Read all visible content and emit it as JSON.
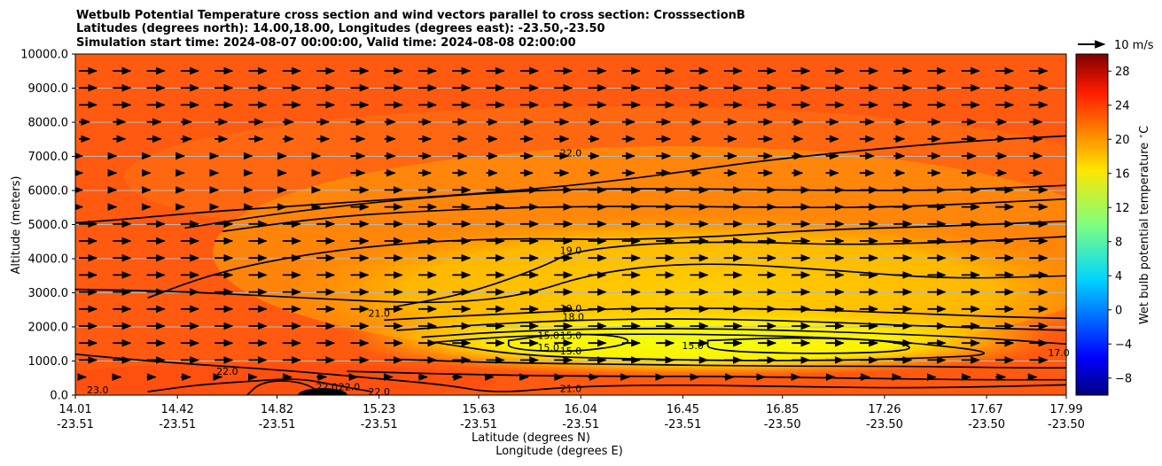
{
  "chart_data": {
    "type": "contour",
    "title_lines": [
      "Wetbulb Potential Temperature cross section and wind vectors parallel to cross section: CrosssectionB",
      "Latitudes (degrees north): 14.00,18.00, Longitudes (degrees east): -23.50,-23.50",
      "Simulation start time: 2024-08-07 00:00:00, Valid time: 2024-08-08 02:00:00"
    ],
    "xlabel_lat": "Latitude (degrees N)",
    "xlabel_lon": "Longitude (degrees E)",
    "ylabel": "Altitude (meters)",
    "ylim": [
      0,
      10000
    ],
    "y_ticks": [
      "0.0",
      "1000.0",
      "2000.0",
      "3000.0",
      "4000.0",
      "5000.0",
      "6000.0",
      "7000.0",
      "8000.0",
      "9000.0",
      "10000.0"
    ],
    "y_tick_values": [
      0,
      1000,
      2000,
      3000,
      4000,
      5000,
      6000,
      7000,
      8000,
      9000,
      10000
    ],
    "xlim": [
      14.01,
      17.99
    ],
    "x_ticks": [
      {
        "lat": "14.01",
        "lon": "-23.51"
      },
      {
        "lat": "14.42",
        "lon": "-23.51"
      },
      {
        "lat": "14.82",
        "lon": "-23.51"
      },
      {
        "lat": "15.23",
        "lon": "-23.51"
      },
      {
        "lat": "15.63",
        "lon": "-23.51"
      },
      {
        "lat": "16.04",
        "lon": "-23.51"
      },
      {
        "lat": "16.45",
        "lon": "-23.51"
      },
      {
        "lat": "16.85",
        "lon": "-23.50"
      },
      {
        "lat": "17.26",
        "lon": "-23.50"
      },
      {
        "lat": "17.67",
        "lon": "-23.50"
      },
      {
        "lat": "17.99",
        "lon": "-23.50"
      }
    ],
    "colorbar": {
      "label": "Wet bulb potential temperature $^\\circ$C",
      "ticks": [
        "−8",
        "−4",
        "0",
        "4",
        "8",
        "12",
        "16",
        "20",
        "24",
        "28"
      ],
      "tick_values": [
        -8,
        -4,
        0,
        4,
        8,
        12,
        16,
        20,
        24,
        28
      ],
      "range": [
        -10,
        30
      ]
    },
    "quiver_key": "10 m/s",
    "contour_labels": [
      {
        "text": "22.0",
        "lat": 16.0,
        "alt": 7100
      },
      {
        "text": "19.0",
        "lat": 16.0,
        "alt": 4250
      },
      {
        "text": "19.0",
        "lat": 16.0,
        "alt": 2550
      },
      {
        "text": "18.0",
        "lat": 16.01,
        "alt": 2300
      },
      {
        "text": "21.0",
        "lat": 15.23,
        "alt": 2400
      },
      {
        "text": "15.0",
        "lat": 15.91,
        "alt": 1750
      },
      {
        "text": "15.0",
        "lat": 16.0,
        "alt": 1750
      },
      {
        "text": "15.0",
        "lat": 15.91,
        "alt": 1400
      },
      {
        "text": "15.0",
        "lat": 16.0,
        "alt": 1300
      },
      {
        "text": "15.0",
        "lat": 16.49,
        "alt": 1450
      },
      {
        "text": "17.0",
        "lat": 17.96,
        "alt": 1250
      },
      {
        "text": "22.0",
        "lat": 14.62,
        "alt": 700
      },
      {
        "text": "23.0",
        "lat": 14.1,
        "alt": 150
      },
      {
        "text": "22.0",
        "lat": 15.02,
        "alt": 250
      },
      {
        "text": "22.0",
        "lat": 15.11,
        "alt": 250
      },
      {
        "text": "22.0",
        "lat": 15.23,
        "alt": 100
      },
      {
        "text": "21.0",
        "lat": 16.0,
        "alt": 200
      }
    ],
    "contours": [
      {
        "level": 22,
        "points": [
          [
            14.01,
            5050
          ],
          [
            14.2,
            5150
          ],
          [
            14.5,
            5350
          ],
          [
            14.8,
            5500
          ],
          [
            15.1,
            5650
          ],
          [
            15.4,
            5800
          ],
          [
            15.8,
            6000
          ],
          [
            16.2,
            6300
          ],
          [
            16.5,
            6600
          ],
          [
            16.8,
            6900
          ],
          [
            17.2,
            7200
          ],
          [
            17.6,
            7450
          ],
          [
            17.99,
            7600
          ]
        ]
      },
      {
        "level": 22,
        "points": [
          [
            14.45,
            4900
          ],
          [
            14.8,
            5300
          ],
          [
            15.2,
            5650
          ],
          [
            15.6,
            5900
          ],
          [
            16.0,
            6050
          ],
          [
            16.5,
            6050
          ],
          [
            17.0,
            6000
          ],
          [
            17.5,
            6000
          ],
          [
            17.99,
            6150
          ]
        ]
      },
      {
        "level": 21,
        "points": [
          [
            14.6,
            4800
          ],
          [
            15.0,
            5200
          ],
          [
            15.4,
            5400
          ],
          [
            15.8,
            5500
          ],
          [
            16.3,
            5550
          ],
          [
            16.8,
            5500
          ],
          [
            17.3,
            5500
          ],
          [
            17.99,
            5750
          ]
        ]
      },
      {
        "level": 20,
        "points": [
          [
            14.3,
            2850
          ],
          [
            14.5,
            3400
          ],
          [
            14.7,
            3800
          ],
          [
            15.0,
            4200
          ],
          [
            15.4,
            4500
          ],
          [
            15.8,
            4600
          ],
          [
            16.2,
            4550
          ],
          [
            16.6,
            4650
          ],
          [
            17.0,
            4850
          ],
          [
            17.5,
            4950
          ],
          [
            17.99,
            5100
          ]
        ]
      },
      {
        "level": 19,
        "points": [
          [
            15.3,
            2600
          ],
          [
            15.6,
            3000
          ],
          [
            15.9,
            3800
          ],
          [
            16.0,
            4200
          ],
          [
            16.3,
            4450
          ],
          [
            16.7,
            4500
          ],
          [
            17.1,
            4400
          ],
          [
            17.6,
            4500
          ],
          [
            17.99,
            4650
          ]
        ]
      },
      {
        "level": 20,
        "points": [
          [
            14.01,
            3100
          ],
          [
            14.4,
            3050
          ],
          [
            14.8,
            2900
          ],
          [
            15.2,
            2750
          ],
          [
            15.5,
            2700
          ],
          [
            15.8,
            2900
          ],
          [
            16.1,
            3600
          ],
          [
            16.5,
            3900
          ],
          [
            17.0,
            3700
          ],
          [
            17.5,
            3400
          ],
          [
            17.99,
            3500
          ]
        ]
      },
      {
        "level": 19,
        "points": [
          [
            15.25,
            2200
          ],
          [
            15.5,
            2300
          ],
          [
            15.8,
            2400
          ],
          [
            16.2,
            2550
          ],
          [
            16.7,
            2550
          ],
          [
            17.2,
            2450
          ],
          [
            17.7,
            2300
          ],
          [
            17.99,
            2250
          ]
        ]
      },
      {
        "level": 18,
        "points": [
          [
            15.3,
            1900
          ],
          [
            15.6,
            2050
          ],
          [
            16.0,
            2200
          ],
          [
            16.5,
            2250
          ],
          [
            17.0,
            2150
          ],
          [
            17.5,
            2000
          ],
          [
            17.99,
            1900
          ]
        ]
      },
      {
        "level": 17,
        "points": [
          [
            15.4,
            1700
          ],
          [
            15.7,
            1850
          ],
          [
            16.1,
            1950
          ],
          [
            16.6,
            1950
          ],
          [
            17.1,
            1850
          ],
          [
            17.6,
            1700
          ],
          [
            17.99,
            1500
          ]
        ]
      },
      {
        "level": 16,
        "points": [
          [
            15.45,
            1550
          ],
          [
            15.8,
            1750
          ],
          [
            16.3,
            1800
          ],
          [
            16.8,
            1750
          ],
          [
            17.3,
            1600
          ],
          [
            17.78,
            1200
          ],
          [
            17.3,
            1050
          ],
          [
            16.8,
            1000
          ],
          [
            16.3,
            1050
          ],
          [
            15.8,
            1150
          ],
          [
            15.45,
            1550
          ]
        ],
        "closed": true
      },
      {
        "level": 15,
        "points": [
          [
            15.75,
            1600
          ],
          [
            15.95,
            1800
          ],
          [
            16.2,
            1750
          ],
          [
            16.25,
            1500
          ],
          [
            16.0,
            1250
          ],
          [
            15.75,
            1350
          ],
          [
            15.75,
            1600
          ]
        ],
        "closed": true
      },
      {
        "level": 15,
        "points": [
          [
            16.55,
            1600
          ],
          [
            16.9,
            1700
          ],
          [
            17.3,
            1600
          ],
          [
            17.4,
            1300
          ],
          [
            17.0,
            1200
          ],
          [
            16.55,
            1300
          ],
          [
            16.55,
            1600
          ]
        ],
        "closed": true
      },
      {
        "level": 18,
        "points": [
          [
            15.3,
            1050
          ],
          [
            15.7,
            950
          ],
          [
            16.2,
            900
          ],
          [
            16.8,
            850
          ],
          [
            17.3,
            850
          ],
          [
            17.8,
            800
          ],
          [
            17.99,
            800
          ]
        ]
      },
      {
        "level": 20,
        "points": [
          [
            15.1,
            700
          ],
          [
            15.6,
            600
          ],
          [
            16.1,
            550
          ],
          [
            16.6,
            550
          ],
          [
            17.1,
            500
          ],
          [
            17.6,
            450
          ],
          [
            17.99,
            450
          ]
        ]
      },
      {
        "level": 21,
        "points": [
          [
            14.01,
            1200
          ],
          [
            14.3,
            1000
          ],
          [
            14.6,
            850
          ],
          [
            14.9,
            700
          ],
          [
            15.2,
            500
          ],
          [
            15.5,
            300
          ],
          [
            15.7,
            50
          ],
          [
            16.0,
            250
          ],
          [
            16.4,
            300
          ],
          [
            16.9,
            250
          ],
          [
            17.4,
            200
          ],
          [
            17.99,
            300
          ]
        ]
      },
      {
        "level": 22,
        "points": [
          [
            14.3,
            100
          ],
          [
            14.5,
            300
          ],
          [
            14.7,
            400
          ],
          [
            14.9,
            500
          ],
          [
            15.05,
            300
          ],
          [
            15.2,
            100
          ]
        ]
      },
      {
        "level": 22,
        "points": [
          [
            14.7,
            0
          ],
          [
            14.75,
            350
          ],
          [
            14.85,
            450
          ],
          [
            14.95,
            300
          ],
          [
            15.0,
            0
          ]
        ]
      }
    ]
  }
}
